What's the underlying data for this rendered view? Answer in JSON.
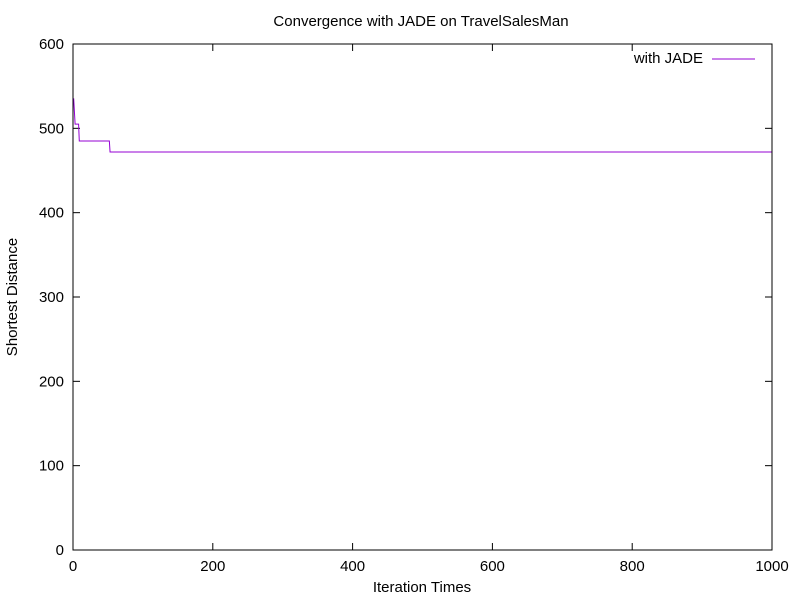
{
  "chart_data": {
    "type": "line",
    "title": "Convergence with JADE on TravelSalesMan",
    "xlabel": "Iteration Times",
    "ylabel": "Shortest Distance",
    "xlim": [
      0,
      1000
    ],
    "ylim": [
      0,
      600
    ],
    "xticks": [
      0,
      200,
      400,
      600,
      800,
      1000
    ],
    "yticks": [
      0,
      100,
      200,
      300,
      400,
      500,
      600
    ],
    "grid": false,
    "legend_position": "top-right",
    "series": [
      {
        "name": "with JADE",
        "color": "#9400d3",
        "x": [
          0,
          1,
          2,
          3,
          4,
          8,
          9,
          52,
          53,
          1000
        ],
        "y": [
          535,
          535,
          520,
          505,
          505,
          505,
          485,
          485,
          472,
          472
        ]
      }
    ]
  }
}
